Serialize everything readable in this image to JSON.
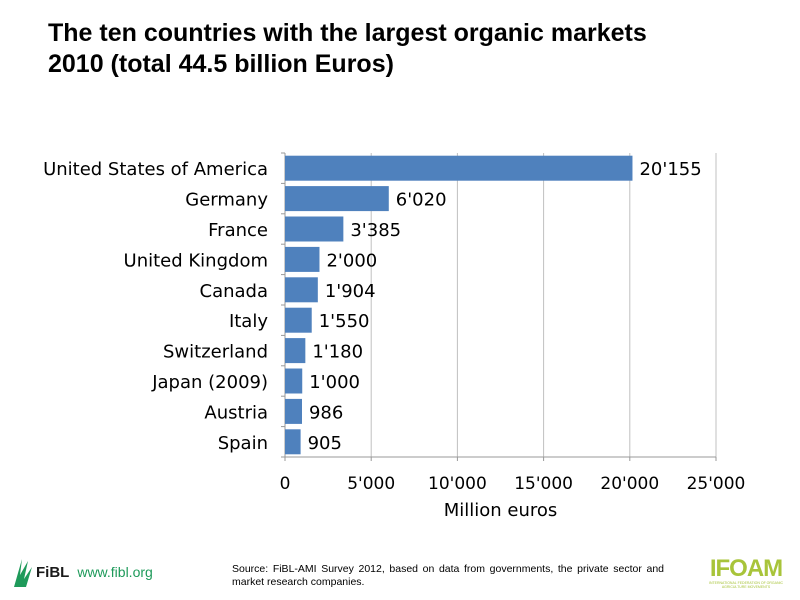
{
  "chart_data": {
    "type": "bar",
    "orientation": "horizontal",
    "title": "The ten countries with the largest organic markets 2010 (total 44.5 billion Euros)",
    "title_lines": [
      "The ten countries with the largest organic markets",
      "2010 (total 44.5 billion Euros)"
    ],
    "categories": [
      "United States of America",
      "Germany",
      "France",
      "United Kingdom",
      "Canada",
      "Italy",
      "Switzerland",
      "Japan (2009)",
      "Austria",
      "Spain"
    ],
    "values": [
      20155,
      6020,
      3385,
      2000,
      1904,
      1550,
      1180,
      1000,
      986,
      905
    ],
    "data_labels": [
      "20'155",
      "6'020",
      "3'385",
      "2'000",
      "1'904",
      "1'550",
      "1'180",
      "1'000",
      "986",
      "905"
    ],
    "xlabel": "Million euros",
    "ylabel": "",
    "xlim": [
      0,
      25000
    ],
    "xticks": [
      0,
      5000,
      10000,
      15000,
      20000,
      25000
    ],
    "xtick_labels": [
      "0",
      "5'000",
      "10'000",
      "15'000",
      "20'000",
      "25'000"
    ],
    "grid": "vertical",
    "bar_color": "#4f81bd"
  },
  "footer": {
    "source": "Source: FiBL-AMI Survey 2012, based on data from governments, the private sector and market research companies.",
    "fibl_logo": "FiBL",
    "fibl_url": "www.fibl.org",
    "ifoam_logo": "IFOAM",
    "ifoam_subtitle": "INTERNATIONAL FEDERATION OF ORGANIC AGRICULTURE MOVEMENTS"
  }
}
